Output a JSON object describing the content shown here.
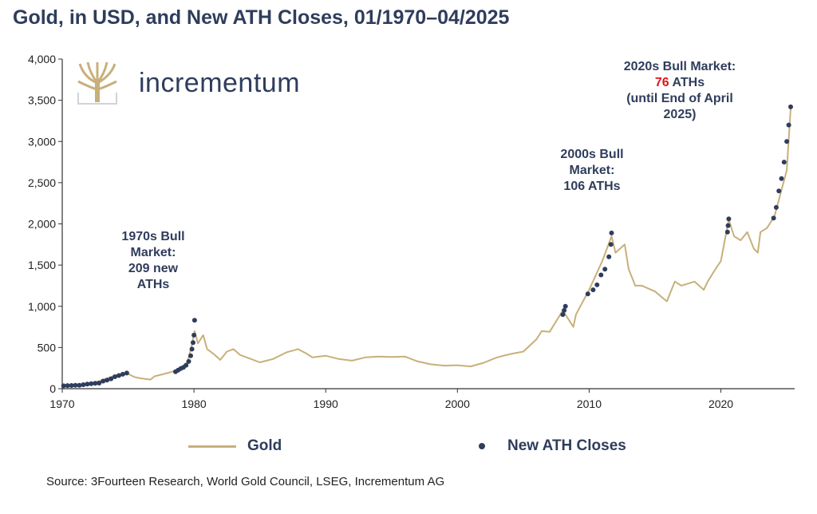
{
  "title": "Gold, in USD, and New ATH Closes, 01/1970–04/2025",
  "logo": {
    "text": "incrementum",
    "icon": "tree-icon"
  },
  "colors": {
    "gold": "#c8b07a",
    "ath": "#2f3d5c",
    "highlight": "#e0141e",
    "axis": "#333333"
  },
  "annotations": {
    "bull_1970s": [
      "1970s Bull",
      "Market:",
      "209 new",
      "ATHs"
    ],
    "bull_2000s": [
      "2000s Bull",
      "Market:",
      "106 ATHs"
    ],
    "bull_2020s": {
      "line1": "2020s Bull Market:",
      "count": "76",
      "count_suffix": " ATHs",
      "line3": "(until End of April",
      "line4": "2025)"
    }
  },
  "legend": {
    "gold_label": "Gold",
    "ath_label": "New ATH Closes"
  },
  "source": "Source: 3Fourteen Research, World Gold Council, LSEG, Incrementum AG",
  "chart_data": {
    "type": "line",
    "xlabel": "",
    "ylabel": "",
    "xlim": [
      1970,
      2025.6
    ],
    "ylim": [
      0,
      4000
    ],
    "x_ticks": [
      "1970",
      "1980",
      "1990",
      "2000",
      "2010",
      "2020"
    ],
    "y_ticks": [
      "0",
      "500",
      "1,000",
      "1,500",
      "2,000",
      "2,500",
      "3,000",
      "3,500",
      "4,000"
    ],
    "grid": false,
    "legend_position": "bottom",
    "series": [
      {
        "name": "Gold",
        "x": [
          1970,
          1971,
          1972,
          1973,
          1974,
          1975,
          1975.5,
          1976,
          1976.7,
          1977,
          1978,
          1978.8,
          1979,
          1979.5,
          1979.8,
          1980.05,
          1980.3,
          1980.7,
          1981,
          1981.5,
          1982,
          1982.5,
          1983,
          1983.5,
          1984,
          1985,
          1986,
          1987,
          1987.9,
          1988.5,
          1989,
          1990,
          1991,
          1992,
          1993,
          1994,
          1995,
          1996,
          1997,
          1998,
          1999,
          2000,
          2001,
          2002,
          2003,
          2004,
          2005,
          2006,
          2006.4,
          2007,
          2008,
          2008.2,
          2008.8,
          2009,
          2010,
          2011,
          2011.7,
          2012,
          2012.7,
          2013,
          2013.5,
          2014,
          2015,
          2015.9,
          2016.5,
          2017,
          2018,
          2018.7,
          2019,
          2019.5,
          2020,
          2020.6,
          2021,
          2021.5,
          2022,
          2022.5,
          2022.8,
          2023,
          2023.5,
          2023.9,
          2024,
          2024.5,
          2025,
          2025.3
        ],
        "values": [
          35,
          40,
          60,
          100,
          160,
          180,
          140,
          125,
          110,
          150,
          190,
          230,
          250,
          320,
          500,
          700,
          550,
          650,
          480,
          420,
          350,
          450,
          480,
          410,
          380,
          320,
          360,
          440,
          480,
          430,
          380,
          400,
          360,
          340,
          380,
          390,
          385,
          390,
          330,
          295,
          280,
          285,
          270,
          315,
          380,
          420,
          450,
          600,
          700,
          690,
          950,
          900,
          750,
          900,
          1200,
          1550,
          1850,
          1650,
          1750,
          1450,
          1250,
          1250,
          1180,
          1060,
          1300,
          1250,
          1300,
          1200,
          1300,
          1430,
          1550,
          2050,
          1850,
          1800,
          1900,
          1700,
          1650,
          1900,
          1950,
          2050,
          2050,
          2350,
          2650,
          3400
        ]
      },
      {
        "name": "New ATH Closes",
        "x": [
          1970.1,
          1970.4,
          1970.7,
          1971,
          1971.3,
          1971.6,
          1971.9,
          1972.2,
          1972.5,
          1972.8,
          1973.1,
          1973.4,
          1973.7,
          1974,
          1974.3,
          1974.6,
          1974.9,
          1978.6,
          1978.8,
          1979,
          1979.2,
          1979.4,
          1979.6,
          1979.75,
          1979.85,
          1979.93,
          1980.0,
          1980.05,
          2008.0,
          2008.1,
          2008.2,
          2009.9,
          2010.3,
          2010.6,
          2010.9,
          2011.2,
          2011.5,
          2011.65,
          2011.7,
          2020.5,
          2020.55,
          2020.6,
          2024.0,
          2024.2,
          2024.4,
          2024.6,
          2024.8,
          2025.0,
          2025.15,
          2025.3
        ],
        "values": [
          35,
          38,
          39,
          41,
          42,
          48,
          55,
          60,
          66,
          68,
          92,
          105,
          120,
          145,
          160,
          175,
          190,
          205,
          225,
          245,
          260,
          285,
          330,
          400,
          480,
          560,
          650,
          830,
          900,
          950,
          1000,
          1150,
          1200,
          1260,
          1380,
          1450,
          1600,
          1750,
          1890,
          1900,
          1980,
          2060,
          2070,
          2200,
          2400,
          2550,
          2750,
          3000,
          3200,
          3420
        ]
      }
    ]
  }
}
